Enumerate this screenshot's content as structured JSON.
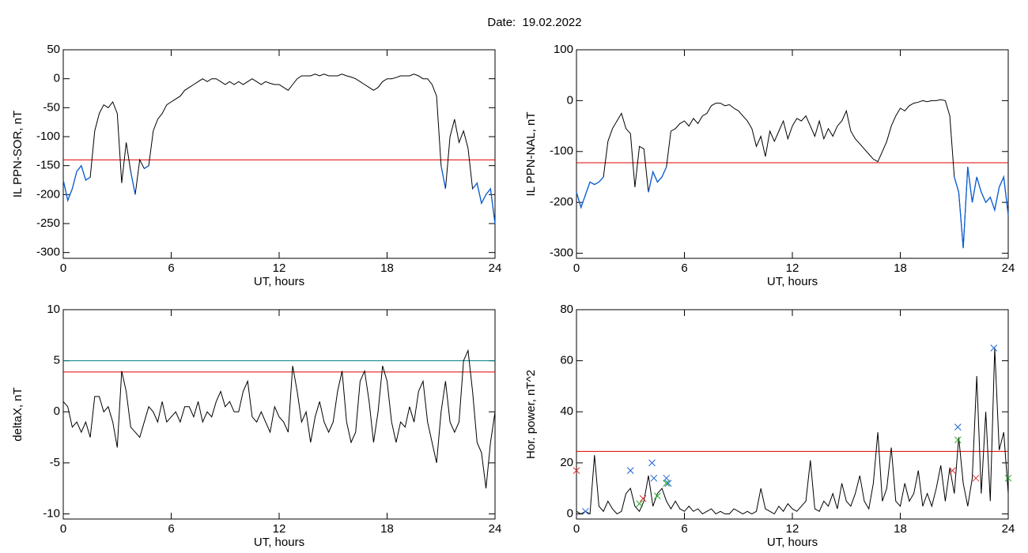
{
  "title": "Date:  19.02.2022",
  "chart_data": [
    {
      "type": "line",
      "ylabel": "IL PPN-SOR, nT",
      "xlabel": "UT, hours",
      "xlim": [
        0,
        24
      ],
      "xticks": [
        0,
        6,
        12,
        18,
        24
      ],
      "ylim": [
        -310,
        50
      ],
      "yticks": [
        50,
        0,
        -50,
        -100,
        -150,
        -200,
        -250,
        -300
      ],
      "hlines": [
        {
          "value": -140,
          "color": "#e00000"
        }
      ],
      "below_color": "#0a5fd8",
      "x": [
        0,
        0.25,
        0.5,
        0.75,
        1,
        1.25,
        1.5,
        1.75,
        2,
        2.25,
        2.5,
        2.75,
        3,
        3.25,
        3.5,
        3.75,
        4,
        4.25,
        4.5,
        4.75,
        5,
        5.25,
        5.5,
        5.75,
        6,
        6.25,
        6.5,
        6.75,
        7,
        7.25,
        7.5,
        7.75,
        8,
        8.25,
        8.5,
        8.75,
        9,
        9.25,
        9.5,
        9.75,
        10,
        10.25,
        10.5,
        10.75,
        11,
        11.25,
        11.5,
        11.75,
        12,
        12.25,
        12.5,
        12.75,
        13,
        13.25,
        13.5,
        13.75,
        14,
        14.25,
        14.5,
        14.75,
        15,
        15.25,
        15.5,
        15.75,
        16,
        16.25,
        16.5,
        16.75,
        17,
        17.25,
        17.5,
        17.75,
        18,
        18.25,
        18.5,
        18.75,
        19,
        19.25,
        19.5,
        19.75,
        20,
        20.25,
        20.5,
        20.75,
        21,
        21.25,
        21.5,
        21.75,
        22,
        22.25,
        22.5,
        22.75,
        23,
        23.25,
        23.5,
        23.75,
        24
      ],
      "series": [
        {
          "color": "#000000",
          "values": [
            -175,
            -210,
            -190,
            -160,
            -150,
            -175,
            -170,
            -90,
            -60,
            -45,
            -50,
            -40,
            -60,
            -180,
            -110,
            -160,
            -200,
            -140,
            -155,
            -150,
            -90,
            -70,
            -60,
            -45,
            -40,
            -35,
            -30,
            -20,
            -15,
            -10,
            -5,
            0,
            -5,
            0,
            0,
            -5,
            -10,
            -5,
            -10,
            -5,
            -10,
            -5,
            0,
            -5,
            -10,
            -5,
            -8,
            -10,
            -10,
            -15,
            -20,
            -10,
            0,
            5,
            5,
            5,
            8,
            5,
            8,
            5,
            5,
            5,
            8,
            5,
            3,
            0,
            -5,
            -10,
            -15,
            -20,
            -15,
            -5,
            0,
            0,
            2,
            5,
            5,
            5,
            8,
            5,
            0,
            0,
            -10,
            -30,
            -150,
            -190,
            -100,
            -70,
            -110,
            -90,
            -120,
            -190,
            -180,
            -215,
            -200,
            -190,
            -250
          ]
        }
      ]
    },
    {
      "type": "line",
      "ylabel": "IL PPN-NAL, nT",
      "xlabel": "UT, hours",
      "xlim": [
        0,
        24
      ],
      "xticks": [
        0,
        6,
        12,
        18,
        24
      ],
      "ylim": [
        -310,
        100
      ],
      "yticks": [
        100,
        0,
        -100,
        -200,
        -300
      ],
      "hlines": [
        {
          "value": -122,
          "color": "#e00000"
        }
      ],
      "below_color": "#0a5fd8",
      "x": [
        0,
        0.25,
        0.5,
        0.75,
        1,
        1.25,
        1.5,
        1.75,
        2,
        2.25,
        2.5,
        2.75,
        3,
        3.25,
        3.5,
        3.75,
        4,
        4.25,
        4.5,
        4.75,
        5,
        5.25,
        5.5,
        5.75,
        6,
        6.25,
        6.5,
        6.75,
        7,
        7.25,
        7.5,
        7.75,
        8,
        8.25,
        8.5,
        8.75,
        9,
        9.25,
        9.5,
        9.75,
        10,
        10.25,
        10.5,
        10.75,
        11,
        11.25,
        11.5,
        11.75,
        12,
        12.25,
        12.5,
        12.75,
        13,
        13.25,
        13.5,
        13.75,
        14,
        14.25,
        14.5,
        14.75,
        15,
        15.25,
        15.5,
        15.75,
        16,
        16.25,
        16.5,
        16.75,
        17,
        17.25,
        17.5,
        17.75,
        18,
        18.25,
        18.5,
        18.75,
        19,
        19.25,
        19.5,
        19.75,
        20,
        20.25,
        20.5,
        20.75,
        21,
        21.25,
        21.5,
        21.75,
        22,
        22.25,
        22.5,
        22.75,
        23,
        23.25,
        23.5,
        23.75,
        24
      ],
      "series": [
        {
          "color": "#000000",
          "values": [
            -180,
            -210,
            -185,
            -160,
            -165,
            -160,
            -150,
            -80,
            -55,
            -40,
            -25,
            -55,
            -65,
            -170,
            -90,
            -95,
            -180,
            -140,
            -160,
            -150,
            -130,
            -60,
            -55,
            -45,
            -40,
            -50,
            -35,
            -45,
            -30,
            -25,
            -10,
            -5,
            -5,
            -10,
            -8,
            -15,
            -20,
            -30,
            -40,
            -55,
            -90,
            -70,
            -110,
            -60,
            -80,
            -60,
            -40,
            -75,
            -50,
            -35,
            -40,
            -30,
            -50,
            -70,
            -40,
            -75,
            -55,
            -70,
            -50,
            -40,
            -20,
            -60,
            -75,
            -85,
            -95,
            -105,
            -115,
            -120,
            -100,
            -80,
            -50,
            -30,
            -15,
            -20,
            -10,
            -5,
            -3,
            0,
            -2,
            0,
            0,
            2,
            0,
            -30,
            -150,
            -180,
            -290,
            -130,
            -200,
            -150,
            -180,
            -200,
            -190,
            -215,
            -170,
            -150,
            -225
          ]
        }
      ]
    },
    {
      "type": "line",
      "ylabel": "deltaX, nT",
      "xlabel": "UT, hours",
      "xlim": [
        0,
        24
      ],
      "xticks": [
        0,
        6,
        12,
        18,
        24
      ],
      "ylim": [
        -10.5,
        10
      ],
      "yticks": [
        10,
        5,
        0,
        -5,
        -10
      ],
      "hlines": [
        {
          "value": 5,
          "color": "#008080"
        },
        {
          "value": 3.9,
          "color": "#e00000"
        }
      ],
      "x": [
        0,
        0.25,
        0.5,
        0.75,
        1,
        1.25,
        1.5,
        1.75,
        2,
        2.25,
        2.5,
        2.75,
        3,
        3.25,
        3.5,
        3.75,
        4,
        4.25,
        4.5,
        4.75,
        5,
        5.25,
        5.5,
        5.75,
        6,
        6.25,
        6.5,
        6.75,
        7,
        7.25,
        7.5,
        7.75,
        8,
        8.25,
        8.5,
        8.75,
        9,
        9.25,
        9.5,
        9.75,
        10,
        10.25,
        10.5,
        10.75,
        11,
        11.25,
        11.5,
        11.75,
        12,
        12.25,
        12.5,
        12.75,
        13,
        13.25,
        13.5,
        13.75,
        14,
        14.25,
        14.5,
        14.75,
        15,
        15.25,
        15.5,
        15.75,
        16,
        16.25,
        16.5,
        16.75,
        17,
        17.25,
        17.5,
        17.75,
        18,
        18.25,
        18.5,
        18.75,
        19,
        19.25,
        19.5,
        19.75,
        20,
        20.25,
        20.5,
        20.75,
        21,
        21.25,
        21.5,
        21.75,
        22,
        22.25,
        22.5,
        22.75,
        23,
        23.25,
        23.5,
        23.75,
        24
      ],
      "series": [
        {
          "color": "#000000",
          "values": [
            1,
            0.5,
            -1.5,
            -1,
            -2,
            -1,
            -2.5,
            1.5,
            1.5,
            0,
            0.5,
            -1,
            -3.5,
            4,
            2,
            -1.5,
            -2,
            -2.5,
            -1,
            0.5,
            0,
            -1,
            1,
            -1,
            -0.5,
            0,
            -1,
            0.5,
            0.5,
            -0.5,
            1,
            -1,
            0,
            -0.5,
            1,
            2,
            0.5,
            1,
            0,
            0,
            2,
            3,
            -0.5,
            -1,
            0,
            -1,
            -2,
            0.5,
            -0.5,
            -1,
            -2,
            4.5,
            2,
            -1,
            0,
            -3,
            -0.5,
            1,
            -1,
            -2,
            -1,
            2,
            4,
            -1,
            -3,
            -2,
            3,
            4,
            1,
            -3,
            0,
            4.5,
            3,
            -1,
            -3,
            -1,
            -1.5,
            0.5,
            -1,
            2,
            3,
            -1,
            -3,
            -5,
            0,
            3,
            -1,
            -2,
            -1,
            5,
            6,
            2,
            -3,
            -4,
            -7.5,
            -3,
            0
          ]
        }
      ]
    },
    {
      "type": "line",
      "ylabel": "Hor. power, nT^2",
      "xlabel": "UT, hours",
      "xlim": [
        0,
        24
      ],
      "xticks": [
        0,
        6,
        12,
        18,
        24
      ],
      "ylim": [
        -2,
        80
      ],
      "yticks": [
        80,
        60,
        40,
        20,
        0
      ],
      "hlines": [
        {
          "value": 24.5,
          "color": "#e00000"
        }
      ],
      "x": [
        0,
        0.25,
        0.5,
        0.75,
        1,
        1.25,
        1.5,
        1.75,
        2,
        2.25,
        2.5,
        2.75,
        3,
        3.25,
        3.5,
        3.75,
        4,
        4.25,
        4.5,
        4.75,
        5,
        5.25,
        5.5,
        5.75,
        6,
        6.25,
        6.5,
        6.75,
        7,
        7.25,
        7.5,
        7.75,
        8,
        8.25,
        8.5,
        8.75,
        9,
        9.25,
        9.5,
        9.75,
        10,
        10.25,
        10.5,
        10.75,
        11,
        11.25,
        11.5,
        11.75,
        12,
        12.25,
        12.5,
        12.75,
        13,
        13.25,
        13.5,
        13.75,
        14,
        14.25,
        14.5,
        14.75,
        15,
        15.25,
        15.5,
        15.75,
        16,
        16.25,
        16.5,
        16.75,
        17,
        17.25,
        17.5,
        17.75,
        18,
        18.25,
        18.5,
        18.75,
        19,
        19.25,
        19.5,
        19.75,
        20,
        20.25,
        20.5,
        20.75,
        21,
        21.25,
        21.5,
        21.75,
        22,
        22.25,
        22.5,
        22.75,
        23,
        23.25,
        23.5,
        23.75,
        24
      ],
      "series": [
        {
          "color": "#000000",
          "values": [
            1,
            0,
            1,
            0,
            23,
            3,
            1,
            5,
            2,
            0,
            1,
            8,
            10,
            3,
            1,
            5,
            15,
            3,
            8,
            10,
            5,
            2,
            5,
            2,
            1,
            3,
            1,
            2,
            0,
            1,
            2,
            0,
            1,
            0,
            0,
            2,
            1,
            0,
            1,
            0,
            1,
            10,
            2,
            1,
            0,
            3,
            1,
            4,
            2,
            1,
            3,
            5,
            21,
            2,
            1,
            5,
            3,
            8,
            2,
            12,
            5,
            3,
            8,
            15,
            5,
            2,
            12,
            32,
            5,
            10,
            26,
            5,
            3,
            12,
            5,
            8,
            17,
            3,
            8,
            3,
            10,
            19,
            5,
            18,
            8,
            30,
            12,
            3,
            14,
            54,
            8,
            40,
            5,
            65,
            25,
            32,
            8
          ]
        }
      ],
      "markers": [
        {
          "color": "#1e64d2",
          "x": [
            0.5,
            3,
            4.2,
            4.3,
            5,
            5.1,
            21.2,
            23.2
          ],
          "values": [
            1,
            17,
            20,
            14,
            14,
            12,
            34,
            65
          ]
        },
        {
          "color": "#22aa22",
          "x": [
            3.5,
            4.5,
            5,
            21.2,
            24
          ],
          "values": [
            4,
            7,
            12,
            29,
            14
          ]
        },
        {
          "color": "#e03030",
          "x": [
            0,
            3.7,
            20.9,
            22.2
          ],
          "values": [
            17,
            6,
            17,
            14
          ]
        }
      ]
    }
  ]
}
